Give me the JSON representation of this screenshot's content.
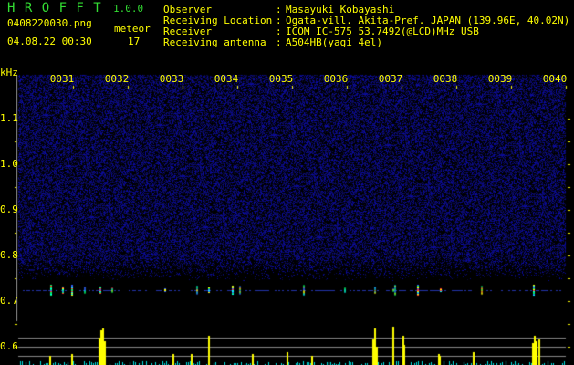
{
  "app": {
    "title": "H R O F F T",
    "version": "1.0.0"
  },
  "file": {
    "name": "0408220030.png",
    "datetime": "04.08.22 00:30"
  },
  "meteor": {
    "label": "meteor",
    "count": "17"
  },
  "info": [
    {
      "label": "Observer",
      "sep": ":",
      "value": "Masayuki Kobayashi"
    },
    {
      "label": "Receiving Location",
      "sep": ":",
      "value": "Ogata-vill. Akita-Pref. JAPAN (139.96E, 40.02N)"
    },
    {
      "label": "Receiver",
      "sep": ":",
      "value": "ICOM IC-575 53.7492(@LCD)MHz USB"
    },
    {
      "label": "Receiving antenna",
      "sep": ":",
      "value": "A504HB(yagi 4el)"
    }
  ],
  "colors": {
    "title": "#33dd33",
    "text": "#ffff00",
    "noise": "#1a1aa0",
    "bars_strong": "#ffff00",
    "bars_weak": "#00e5e5",
    "grid": "#888888"
  },
  "chart_data": {
    "type": "heatmap",
    "ylabel": "kHz",
    "yticks": [
      "1.1",
      "1.0",
      "0.9",
      "0.8",
      "0.7",
      "0.6"
    ],
    "xticks": [
      "0031",
      "0032",
      "0033",
      "0034",
      "0035",
      "0036",
      "0037",
      "0038",
      "0039",
      "0040"
    ],
    "ylim": [
      0.56,
      1.2
    ],
    "echo_frequency_khz": 0.725
  }
}
